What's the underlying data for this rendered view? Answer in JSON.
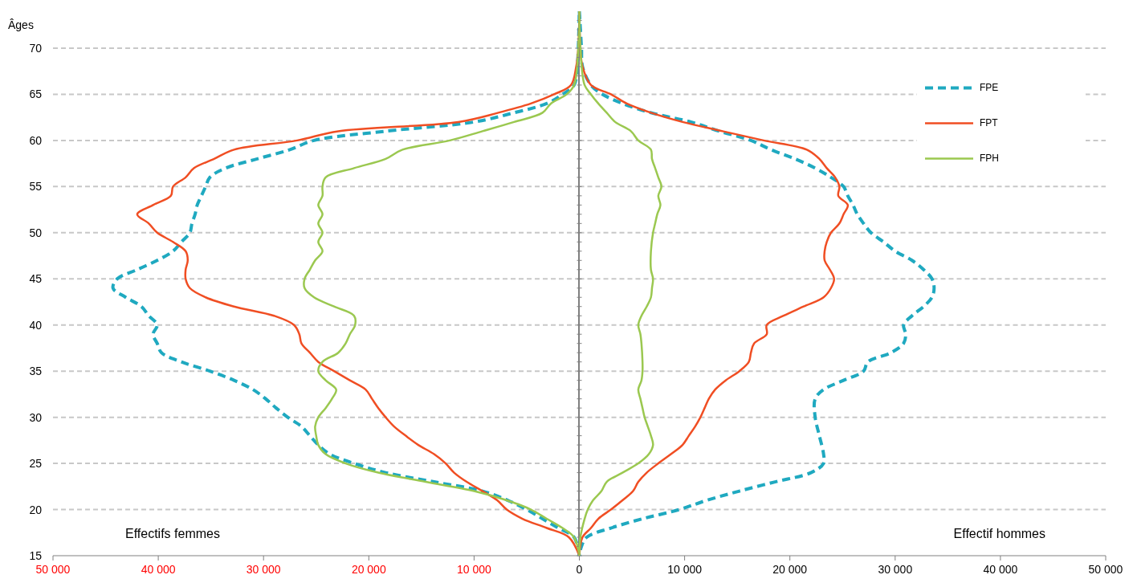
{
  "chart_data": [
    {
      "type": "line",
      "ylabel": "Âges",
      "annotations": [
        "Effectifs femmes"
      ],
      "xlim": [
        50000,
        0
      ],
      "xticks": [
        {
          "value": 50000,
          "label": "50 000"
        },
        {
          "value": 40000,
          "label": "40 000"
        },
        {
          "value": 30000,
          "label": "30 000"
        },
        {
          "value": 20000,
          "label": "20 000"
        },
        {
          "value": 10000,
          "label": "10 000"
        }
      ],
      "ylim": [
        15,
        74
      ],
      "yticks": [
        15,
        20,
        25,
        30,
        35,
        40,
        45,
        50,
        55,
        60,
        65,
        70
      ],
      "grid": "y",
      "marker": "none",
      "series": [
        {
          "color": "#1fa9c0",
          "line_style": "dashed",
          "x": [
            0,
            500,
            2000,
            3500,
            5000,
            6800,
            9200,
            13800,
            18400,
            21400,
            23700,
            24800,
            25600,
            26400,
            27700,
            28800,
            29800,
            31000,
            32800,
            35100,
            37800,
            39700,
            40100,
            40500,
            40100,
            40900,
            41600,
            43100,
            44300,
            43900,
            42000,
            40100,
            38600,
            37800,
            37000,
            36800,
            36500,
            36300,
            35900,
            35500,
            35100,
            33600,
            30600,
            27500,
            25200,
            18400,
            10000,
            6200,
            3100,
            1600,
            500,
            200,
            100,
            0
          ],
          "values": [
            15,
            17,
            18,
            19,
            20,
            21,
            22,
            23,
            24,
            25,
            26,
            27,
            28,
            29,
            30,
            31,
            32,
            33,
            34,
            35,
            36,
            37,
            38,
            39,
            40,
            41,
            42,
            43,
            44,
            45,
            46,
            47,
            48,
            49,
            50,
            51,
            52,
            53,
            54,
            55,
            56,
            57,
            58,
            59,
            60,
            61,
            62,
            63,
            64,
            65,
            66,
            68,
            70,
            74
          ]
        },
        {
          "color": "#f04e23",
          "line_style": "solid",
          "x": [
            0,
            1000,
            3100,
            5400,
            6900,
            7800,
            9200,
            10700,
            11900,
            12700,
            13800,
            15300,
            16500,
            17600,
            18400,
            19100,
            19700,
            20300,
            21800,
            23300,
            24800,
            25600,
            26400,
            26600,
            27100,
            29000,
            32800,
            35500,
            37000,
            37400,
            37400,
            37200,
            37400,
            38600,
            40100,
            40900,
            42000,
            40500,
            38800,
            38600,
            37400,
            36600,
            34700,
            32800,
            26800,
            22900,
            11500,
            7700,
            4600,
            2400,
            800,
            300,
            100,
            0
          ],
          "values": [
            15,
            17,
            18,
            19,
            20,
            21,
            22,
            23,
            24,
            25,
            26,
            27,
            28,
            29,
            30,
            31,
            32,
            33,
            34,
            35,
            36,
            37,
            38,
            39,
            40,
            41,
            42,
            43,
            44,
            45,
            46,
            47,
            48,
            49,
            50,
            51,
            52,
            53,
            54,
            55,
            56,
            57,
            58,
            59,
            60,
            61,
            62,
            63,
            64,
            65,
            66,
            68,
            70,
            74
          ]
        },
        {
          "color": "#9bc850",
          "line_style": "solid",
          "x": [
            0,
            500,
            1600,
            3100,
            4600,
            6900,
            10000,
            14600,
            19100,
            22200,
            24100,
            24800,
            25000,
            25100,
            24800,
            24100,
            23500,
            23100,
            24100,
            24800,
            24400,
            22900,
            22200,
            21800,
            21300,
            21400,
            23300,
            25200,
            26100,
            26100,
            25600,
            25100,
            24400,
            24800,
            24400,
            24800,
            24400,
            24800,
            24400,
            24400,
            24100,
            21400,
            18400,
            16800,
            12300,
            9200,
            6200,
            3500,
            2700,
            1200,
            500,
            100,
            0
          ],
          "values": [
            15,
            17,
            18,
            19,
            20,
            21,
            22,
            23,
            24,
            25,
            26,
            27,
            28,
            29,
            30,
            31,
            32,
            33,
            34,
            35,
            36,
            37,
            38,
            39,
            40,
            41,
            42,
            43,
            44,
            45,
            46,
            47,
            48,
            49,
            50,
            51,
            52,
            53,
            54,
            55,
            56,
            57,
            58,
            59,
            60,
            61,
            62,
            63,
            64,
            65,
            66,
            70,
            74
          ]
        }
      ]
    },
    {
      "type": "line",
      "annotations": [
        "Effectif hommes"
      ],
      "xlim": [
        0,
        50000
      ],
      "xticks": [
        0,
        {
          "value": 10000,
          "label": "10 000"
        },
        {
          "value": 20000,
          "label": "20 000"
        },
        {
          "value": 30000,
          "label": "30 000"
        },
        {
          "value": 40000,
          "label": "40 000"
        },
        {
          "value": 50000,
          "label": "50 000"
        }
      ],
      "ylim": [
        15,
        74
      ],
      "yticks": [
        15,
        16,
        17,
        18,
        19,
        20,
        21,
        22,
        23,
        24,
        25,
        26,
        27,
        28,
        29,
        30,
        31,
        32,
        33,
        34,
        35,
        36,
        37,
        38,
        39,
        40,
        41,
        42,
        43,
        44,
        45,
        46,
        47,
        48,
        49,
        50,
        51,
        52,
        53,
        54,
        55,
        56,
        57,
        58,
        59,
        60,
        61,
        62,
        63,
        64,
        65,
        66,
        67,
        68,
        69,
        70,
        71,
        72,
        73
      ],
      "tick_labels": "x",
      "grid": "y",
      "legend": "top right",
      "marker": "none",
      "series": [
        {
          "name": "FPE",
          "color": "#1fa9c0",
          "line_style": "dashed",
          "x": [
            0,
            200,
            300,
            1100,
            2200,
            4100,
            6800,
            10600,
            13300,
            16300,
            18200,
            20500,
            22400,
            23900,
            25100,
            25500,
            26000,
            26400,
            27000,
            27700,
            28900,
            30000,
            31600,
            32700,
            33500,
            33700,
            33500,
            32700,
            31600,
            30800,
            31000,
            30800,
            29600,
            27400,
            27000,
            25100,
            23200,
            22400,
            22400,
            22800,
            23200,
            23200,
            22000,
            18600,
            15200,
            12100,
            9500,
            6000,
            3000,
            700,
            200,
            0
          ],
          "values": [
            74,
            70,
            68,
            66,
            65,
            64,
            63,
            62,
            61,
            60,
            59,
            58,
            57,
            56,
            55,
            54,
            53,
            52,
            51,
            50,
            49,
            48,
            47,
            46,
            45,
            44,
            43,
            42,
            41,
            40,
            39,
            38,
            37,
            36,
            35,
            34,
            33,
            32,
            30,
            28,
            26,
            25,
            24,
            23,
            22,
            21,
            20,
            19,
            18,
            17,
            16,
            15
          ]
        },
        {
          "name": "FPT",
          "color": "#f04e23",
          "line_style": "solid",
          "x": [
            0,
            100,
            300,
            1100,
            3000,
            4500,
            6800,
            9800,
            13600,
            17500,
            21600,
            22800,
            23500,
            24300,
            24700,
            24600,
            25500,
            25100,
            24700,
            23900,
            23500,
            23300,
            23300,
            23800,
            24200,
            23900,
            23200,
            21300,
            19400,
            17800,
            17800,
            16600,
            16300,
            16100,
            15200,
            13900,
            12900,
            12300,
            11900,
            11500,
            11000,
            10400,
            9800,
            8700,
            7500,
            6400,
            5600,
            5100,
            4100,
            3000,
            1800,
            1100,
            300,
            0
          ],
          "values": [
            74,
            70,
            68,
            66,
            65,
            64,
            63,
            62,
            61,
            60,
            59,
            58,
            57,
            56,
            55,
            54,
            53,
            52,
            51,
            50,
            49,
            48,
            47,
            46,
            45,
            44,
            43,
            42,
            41,
            40,
            39,
            38,
            37,
            36,
            35,
            34,
            33,
            32,
            31,
            30,
            29,
            28,
            27,
            26,
            25,
            24,
            23,
            22,
            21,
            20,
            19,
            18,
            17,
            15
          ]
        },
        {
          "name": "FPH",
          "color": "#9bc850",
          "line_style": "solid",
          "x": [
            0,
            100,
            500,
            1100,
            1800,
            2600,
            3400,
            4900,
            5600,
            6800,
            6900,
            7200,
            7500,
            7800,
            7500,
            7700,
            7400,
            7200,
            7000,
            6800,
            6800,
            7000,
            6900,
            6800,
            6400,
            5900,
            5600,
            5800,
            5900,
            6000,
            6000,
            5900,
            5600,
            5800,
            6000,
            6200,
            6500,
            6800,
            7000,
            6600,
            5600,
            4100,
            2600,
            2100,
            1300,
            800,
            500,
            100,
            0
          ],
          "values": [
            74,
            70,
            66,
            65,
            64,
            63,
            62,
            61,
            60,
            59,
            58,
            57,
            56,
            55,
            54,
            53,
            52,
            51,
            50,
            48,
            46,
            45,
            44,
            43,
            42,
            41,
            40,
            39,
            38,
            36,
            35,
            34,
            33,
            32,
            31,
            30,
            29,
            28,
            27,
            26,
            25,
            24,
            23,
            22,
            21,
            20,
            19,
            17,
            15
          ]
        }
      ]
    }
  ]
}
